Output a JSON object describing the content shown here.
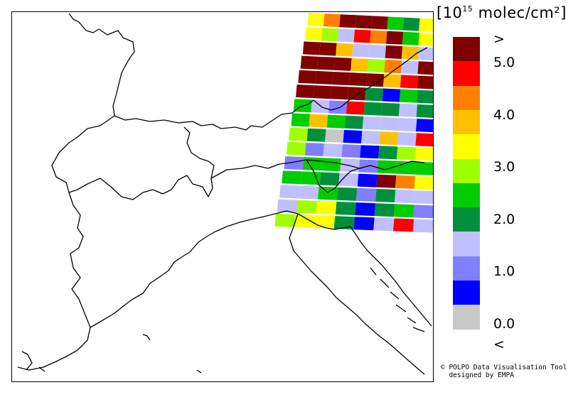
{
  "legend": {
    "unit_prefix": "[10",
    "unit_exp": "15",
    "unit_suffix": " molec/cm²]",
    "over_label": ">",
    "under_label": "<",
    "ticks": [
      "5.0",
      "4.0",
      "3.0",
      "2.0",
      "1.0",
      "0.0"
    ],
    "colors": [
      "#800000",
      "#ff0000",
      "#ff8000",
      "#ffc000",
      "#ffff00",
      "#a0ff00",
      "#00cc00",
      "#00903c",
      "#c0c0ff",
      "#8080ff",
      "#0000ff",
      "#c8c8c8"
    ]
  },
  "credit": {
    "line1": "© POLPO Data Visualisation Tool",
    "line2": "  designed by EMPA"
  },
  "swath": {
    "rows": [
      [
        "yellow",
        "orange",
        "darkred",
        "darkred",
        "darkred",
        "green",
        "dkgreen",
        "yellow"
      ],
      [
        "yellow",
        "lime",
        "lavender",
        "red",
        "orange",
        "darkred",
        "green",
        "yellow"
      ],
      [
        "darkred",
        "darkred",
        "amber",
        "lavender",
        "lavender",
        "darkred",
        "amber",
        "lavender"
      ],
      [
        "darkred",
        "darkred",
        "darkred",
        "amber",
        "lime",
        "orange",
        "lavender",
        "darkred"
      ],
      [
        "darkred",
        "darkred",
        "darkred",
        "darkred",
        "darkred",
        "amber",
        "red",
        "darkred"
      ],
      [
        "darkred",
        "darkred",
        "darkred",
        "darkred",
        "dkgreen",
        "blue",
        "green",
        "dkgreen"
      ],
      [
        "green",
        "lavender",
        "periwinkle",
        "red",
        "dkgreen",
        "dkgreen",
        "lavender",
        "dkgreen"
      ],
      [
        "green",
        "amber",
        "green",
        "dkgreen",
        "lavender",
        "lavender",
        "lavender",
        "blue"
      ],
      [
        "lime",
        "dkgreen",
        "grey",
        "blue",
        "lavender",
        "amber",
        "lavender",
        "red"
      ],
      [
        "lime",
        "periwinkle",
        "lavender",
        "periwinkle",
        "blue",
        "dkgreen",
        "lime",
        "yellow"
      ],
      [
        "periwinkle",
        "green",
        "green",
        "lavender",
        "periwinkle",
        "green",
        "green",
        "green"
      ],
      [
        "green",
        "green",
        "dkgreen",
        "lavender",
        "blue",
        "darkred",
        "orange",
        "yellow"
      ],
      [
        "lavender",
        "lavender",
        "green",
        "dkgreen",
        "periwinkle",
        "dkgreen",
        "lavender",
        "lavender"
      ],
      [
        "lavender",
        "lime",
        "yellow",
        "dkgreen",
        "blue",
        "dkgreen",
        "green",
        "periwinkle"
      ],
      [
        "lime",
        "yellow",
        "yellow",
        "dkgreen",
        "blue",
        "lavender",
        "red",
        "lavender"
      ]
    ]
  }
}
